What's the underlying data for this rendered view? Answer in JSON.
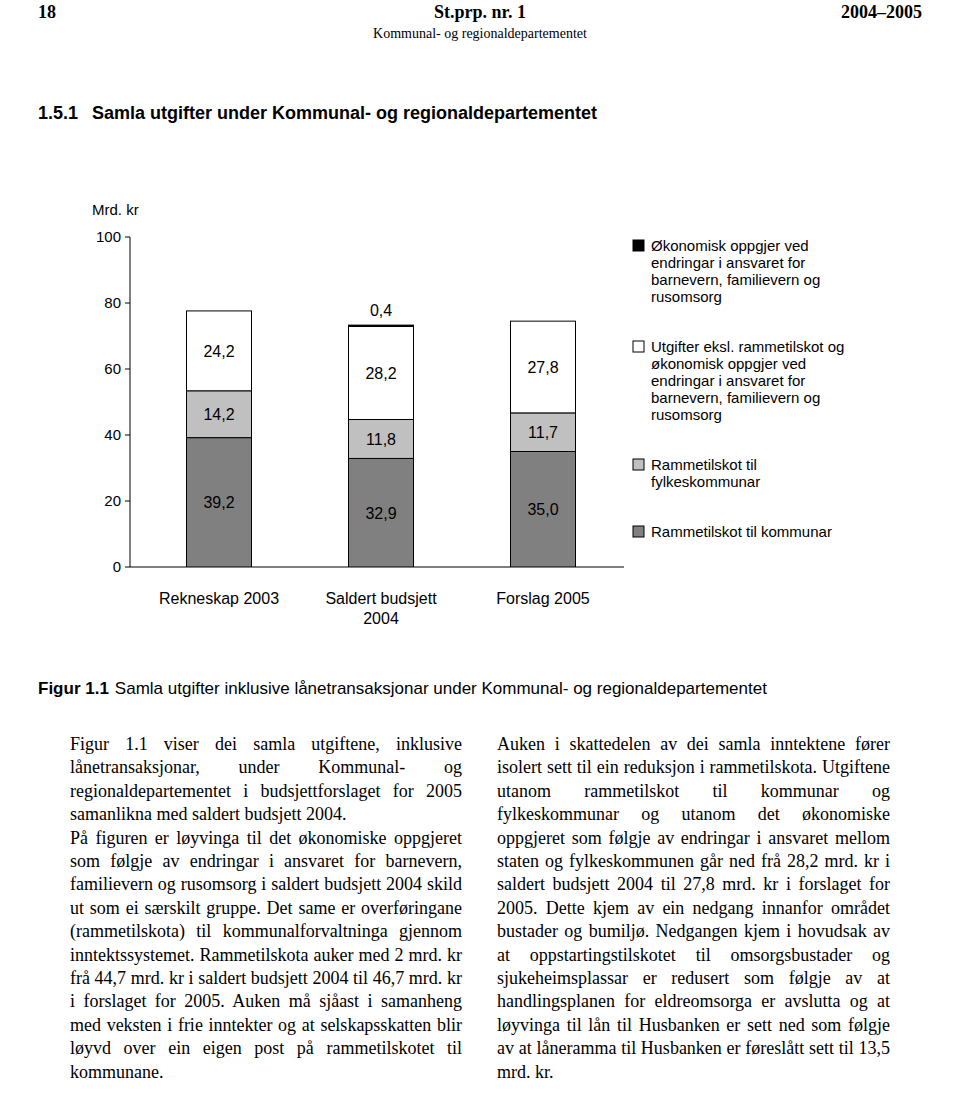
{
  "header": {
    "page": "18",
    "title": "St.prp. nr. 1",
    "years": "2004–2005",
    "ministry": "Kommunal- og regionaldepartementet"
  },
  "section": {
    "number": "1.5.1",
    "title": "Samla utgifter under Kommunal- og regionaldepartementet"
  },
  "chart_data": {
    "type": "bar",
    "stacked": true,
    "data_labels": true,
    "figure_label": "Figur 1.1",
    "title": "Samla utgifter inklusive lånetransaksjonar under Kommunal- og regionaldepartementet",
    "y_label": "Mrd. kr",
    "categories": [
      "Rekneskap 2003",
      "Saldert budsjett 2004",
      "Forslag 2005"
    ],
    "ylim": [
      0,
      100
    ],
    "yticks": [
      0,
      20,
      40,
      60,
      80,
      100
    ],
    "legend": "right",
    "series": [
      {
        "name": "Rammetilskot til kommunar",
        "color": "#808080",
        "values": [
          39.2,
          32.9,
          35.0
        ],
        "value_labels": [
          "39,2",
          "32,9",
          "35,0"
        ]
      },
      {
        "name": "Rammetilskot til fylkeskommunar",
        "color": "#c0c0c0",
        "values": [
          14.2,
          11.8,
          11.7
        ],
        "value_labels": [
          "14,2",
          "11,8",
          "11,7"
        ]
      },
      {
        "name": "Utgifter eksl. rammetilskot og økonomisk oppgjer ved endringar i ansvaret for barnevern, familievern og rusomsorg",
        "color": "#ffffff",
        "values": [
          24.2,
          28.2,
          27.8
        ],
        "value_labels": [
          "24,2",
          "28,2",
          "27,8"
        ]
      },
      {
        "name": "Økonomisk oppgjer ved endringar i ansvaret for barnevern, familievern og rusomsorg",
        "color": "#000000",
        "values": [
          null,
          0.4,
          null
        ],
        "value_labels": [
          null,
          "0,4",
          null
        ]
      }
    ]
  },
  "columns": [
    [
      "Figur 1.1 viser dei samla utgiftene, inklusive lånetransaksjonar, under Kommunal- og regionaldepartementet i budsjettforslaget for 2005 samanlikna med saldert budsjett 2004.",
      "På figuren er løyvinga til det økonomiske oppgjeret som følgje av endringar i ansvaret for barnevern, familievern og rusomsorg i saldert budsjett 2004 skild ut som ei særskilt gruppe. Det same er overføringane (rammetilskota) til kommunalforvaltninga gjennom inntektssystemet. Rammetilskota auker med 2 mrd. kr frå 44,7 mrd. kr i saldert budsjett 2004 til 46,7 mrd. kr i forslaget for 2005. Auken må sjåast i samanheng med veksten i frie inntekter og at selskapsskatten blir løyvd over ein eigen post på rammetilskotet til kommunane."
    ],
    [
      "Auken i skattedelen av dei samla inntektene fører isolert sett til ein reduksjon i rammetilskota. Utgiftene utanom rammetilskot til kommunar og fylkeskommunar og utanom det økonomiske oppgjeret som følgje av endringar i ansvaret mellom staten og fylkeskommunen går ned frå 28,2 mrd. kr i saldert budsjett 2004 til 27,8 mrd. kr i forslaget for 2005. Dette kjem av ein nedgang innanfor området bustader og bumiljø. Nedgangen kjem i hovudsak av at oppstartingstilskotet til omsorgsbustader og sjukeheimsplassar er redusert som følgje av at handlingsplanen for eldreomsorga er avslutta og at løyvinga til lån til Husbanken er sett ned som følgje av at låneramma til Husbanken er føreslått sett til 13,5 mrd. kr."
    ]
  ]
}
